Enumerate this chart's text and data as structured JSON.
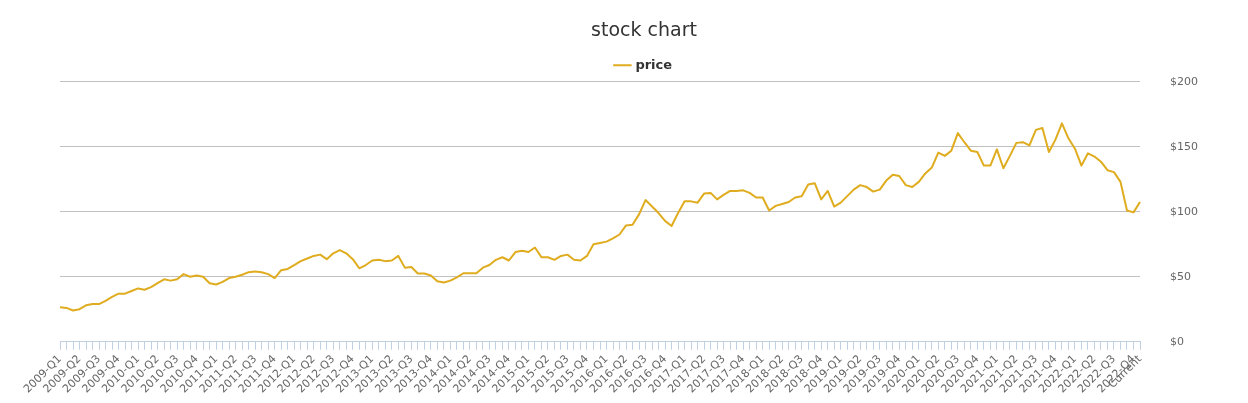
{
  "chart_data": {
    "type": "line",
    "title": "stock chart",
    "categories": [
      "2009-Q1",
      null,
      null,
      "2009-Q2",
      null,
      null,
      "2009-Q3",
      null,
      null,
      "2009-Q4",
      null,
      null,
      "2010-Q1",
      null,
      null,
      "2010-Q2",
      null,
      null,
      "2010-Q3",
      null,
      null,
      "2010-Q4",
      null,
      null,
      "2011-Q1",
      null,
      null,
      "2011-Q2",
      null,
      null,
      "2011-Q3",
      null,
      null,
      "2011-Q4",
      null,
      null,
      "2012-Q1",
      null,
      null,
      "2012-Q2",
      null,
      null,
      "2012-Q3",
      null,
      null,
      "2012-Q4",
      null,
      null,
      "2013-Q1",
      null,
      null,
      "2013-Q2",
      null,
      null,
      "2013-Q3",
      null,
      null,
      "2013-Q4",
      null,
      null,
      "2014-Q1",
      null,
      null,
      "2014-Q2",
      null,
      null,
      "2014-Q3",
      null,
      null,
      "2014-Q4",
      null,
      null,
      "2015-Q1",
      null,
      null,
      "2015-Q2",
      null,
      null,
      "2015-Q3",
      null,
      null,
      "2015-Q4",
      null,
      null,
      "2016-Q1",
      null,
      null,
      "2016-Q2",
      null,
      null,
      "2016-Q3",
      null,
      null,
      "2016-Q4",
      null,
      null,
      "2017-Q1",
      null,
      null,
      "2017-Q2",
      null,
      null,
      "2017-Q3",
      null,
      null,
      "2017-Q4",
      null,
      null,
      "2018-Q1",
      null,
      null,
      "2018-Q2",
      null,
      null,
      "2018-Q3",
      null,
      null,
      "2018-Q4",
      null,
      null,
      "2019-Q1",
      null,
      null,
      "2019-Q2",
      null,
      null,
      "2019-Q3",
      null,
      null,
      "2019-Q4",
      null,
      null,
      "2020-Q1",
      null,
      null,
      "2020-Q2",
      null,
      null,
      "2020-Q3",
      null,
      null,
      "2020-Q4",
      null,
      null,
      "2021-Q1",
      null,
      null,
      "2021-Q2",
      null,
      null,
      "2021-Q3",
      null,
      null,
      "2021-Q4",
      null,
      null,
      "2022-Q1",
      null,
      null,
      "2022-Q2",
      null,
      null,
      "2022-Q3",
      null,
      null,
      "2022-Q4",
      "Current"
    ],
    "series": [
      {
        "name": "price",
        "color": "#e0ac1f",
        "values": [
          26.5,
          26,
          24,
          25,
          28,
          29,
          29,
          31.5,
          34.5,
          37,
          37,
          39,
          41,
          40,
          42,
          45,
          48,
          47,
          48,
          52,
          50,
          51,
          50,
          45,
          44,
          46,
          49,
          50,
          51.5,
          53.5,
          54,
          53.5,
          52,
          49,
          55,
          56,
          59,
          62,
          64,
          66,
          67,
          63.5,
          68,
          70.5,
          68,
          63.5,
          56.5,
          59,
          62.5,
          63,
          62,
          62.5,
          66,
          57,
          57.5,
          52.5,
          52.5,
          51,
          46.5,
          45.5,
          47,
          49.5,
          52.7,
          52.7,
          52.7,
          57,
          59,
          63,
          65,
          62.5,
          69,
          70,
          69,
          72.5,
          65,
          65,
          63,
          66,
          67,
          63,
          62.5,
          66,
          75,
          76,
          77,
          79.5,
          82.5,
          89.5,
          90,
          98,
          109,
          104,
          99,
          93,
          89,
          99,
          108,
          108,
          107,
          114,
          114.5,
          109.5,
          113,
          116,
          116,
          116.5,
          114.5,
          111,
          111,
          101,
          104.5,
          106,
          107.5,
          111,
          112,
          121,
          122,
          109.5,
          116,
          104,
          107,
          112,
          117,
          120.5,
          119,
          115.5,
          117,
          124,
          128.5,
          127.5,
          120.5,
          119,
          123,
          129.5,
          134,
          145.5,
          143,
          147,
          160.5,
          153.5,
          147,
          146,
          135.5,
          135.5,
          148,
          133.5,
          143,
          153,
          153.5,
          151,
          163,
          164.5,
          146,
          155.5,
          168,
          156.5,
          148.5,
          135.5,
          145,
          142.5,
          138.5,
          132,
          130.5,
          123,
          101,
          99.5,
          107.5
        ]
      }
    ],
    "ylim": [
      0,
      200
    ],
    "yticks": [
      {
        "value": 0,
        "label": "$0"
      },
      {
        "value": 50,
        "label": "$50"
      },
      {
        "value": 100,
        "label": "$100"
      },
      {
        "value": 150,
        "label": "$150"
      },
      {
        "value": 200,
        "label": "$200"
      }
    ],
    "grid": "y",
    "legend": "top",
    "marker": "none",
    "line_style": "solid"
  }
}
